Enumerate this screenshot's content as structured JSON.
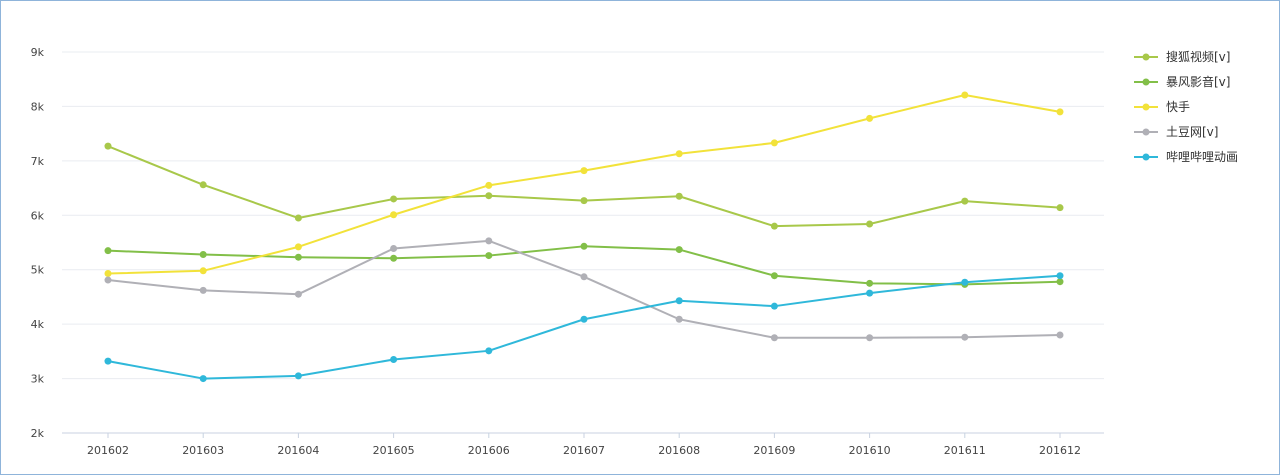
{
  "chart_data": {
    "type": "line",
    "title": "",
    "xlabel": "",
    "ylabel": "",
    "x": [
      "201602",
      "201603",
      "201604",
      "201605",
      "201606",
      "201607",
      "201608",
      "201609",
      "201610",
      "201611",
      "201612"
    ],
    "ylim": [
      2000,
      9000
    ],
    "yticks": [
      {
        "value": 2000,
        "label": "2k"
      },
      {
        "value": 3000,
        "label": "3k"
      },
      {
        "value": 4000,
        "label": "4k"
      },
      {
        "value": 5000,
        "label": "5k"
      },
      {
        "value": 6000,
        "label": "6k"
      },
      {
        "value": 7000,
        "label": "7k"
      },
      {
        "value": 8000,
        "label": "8k"
      },
      {
        "value": 9000,
        "label": "9k"
      }
    ],
    "grid": true,
    "legend_position": "top-right",
    "series": [
      {
        "name": "搜狐视频[v]",
        "color": "#a8c84a",
        "values": [
          7270,
          6560,
          5950,
          6300,
          6360,
          6270,
          6350,
          5800,
          5840,
          6260,
          6140
        ]
      },
      {
        "name": "暴风影音[v]",
        "color": "#82bf48",
        "values": [
          5350,
          5280,
          5230,
          5210,
          5260,
          5430,
          5370,
          4890,
          4750,
          4730,
          4780
        ]
      },
      {
        "name": "快手",
        "color": "#f2e23a",
        "values": [
          4930,
          4980,
          5420,
          6010,
          6550,
          6820,
          7130,
          7330,
          7780,
          8210,
          7900
        ]
      },
      {
        "name": "土豆网[v]",
        "color": "#b0b0b6",
        "values": [
          4810,
          4620,
          4550,
          5390,
          5530,
          4870,
          4090,
          3750,
          3750,
          3760,
          3800
        ]
      },
      {
        "name": "哔哩哔哩动画",
        "color": "#2fb8da",
        "values": [
          3320,
          3000,
          3050,
          3350,
          3510,
          4090,
          4430,
          4330,
          4570,
          4770,
          4890
        ]
      }
    ]
  }
}
